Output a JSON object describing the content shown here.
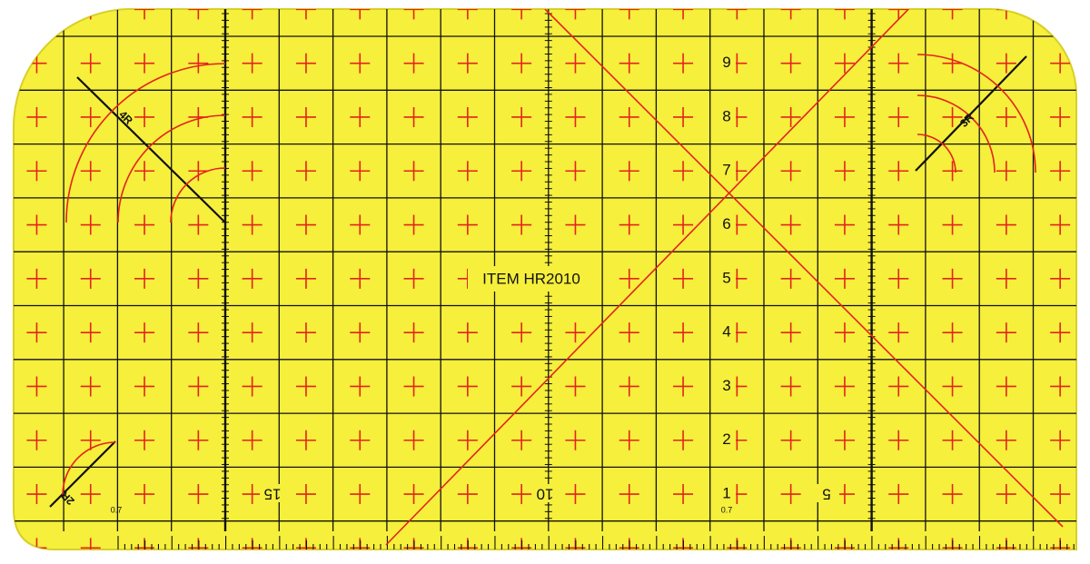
{
  "ruler": {
    "item_label": "ITEM HR2010",
    "vertical_scale": [
      "9",
      "8",
      "7",
      "6",
      "5",
      "4",
      "3",
      "2",
      "1"
    ],
    "horizontal_scale": [
      "15",
      "10",
      "5"
    ],
    "offset_labels": [
      "0.7",
      "0.7"
    ],
    "radius_labels": [
      "4R",
      "3R",
      "2R"
    ]
  }
}
